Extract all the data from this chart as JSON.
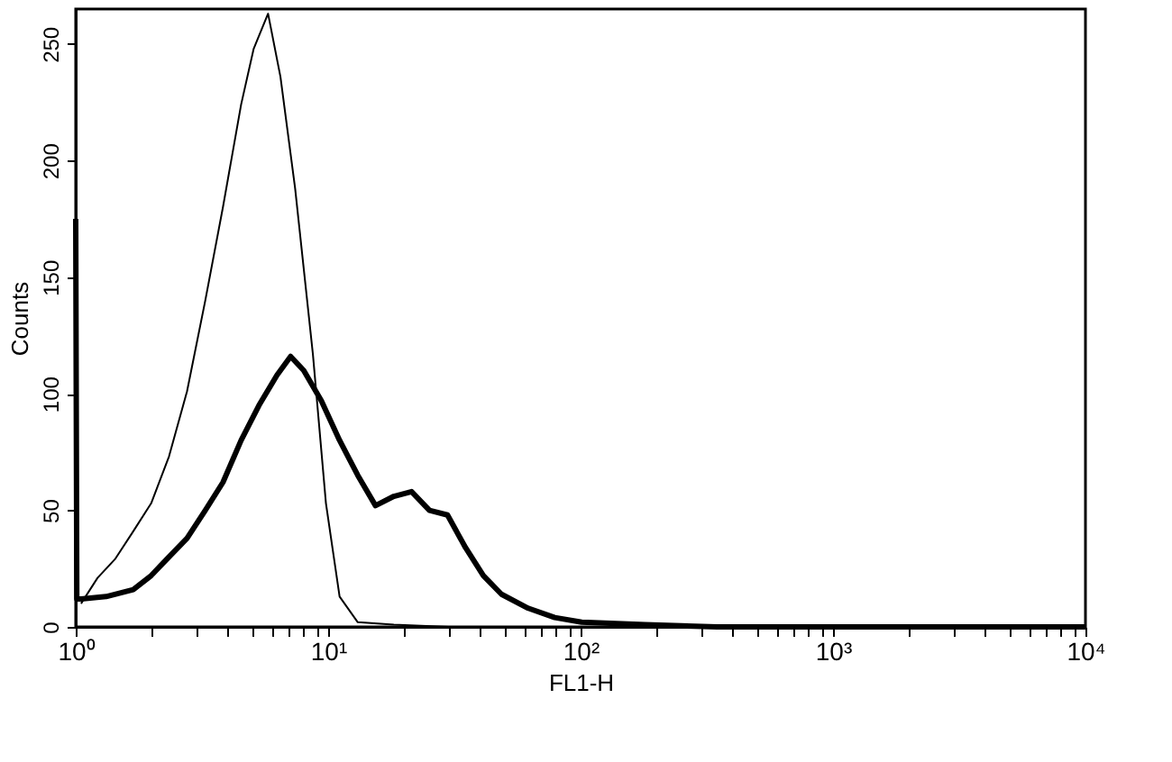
{
  "chart_data": {
    "type": "line",
    "xlabel": "FL1-H",
    "ylabel": "Counts",
    "xlim": [
      1,
      10000
    ],
    "ylim": [
      0,
      265
    ],
    "xticks": [
      {
        "value": 1,
        "label": "10⁰"
      },
      {
        "value": 2,
        "label": null
      },
      {
        "value": 3,
        "label": null
      },
      {
        "value": 4,
        "label": null
      },
      {
        "value": 5,
        "label": null
      },
      {
        "value": 6,
        "label": null
      },
      {
        "value": 7,
        "label": null
      },
      {
        "value": 8,
        "label": null
      },
      {
        "value": 9,
        "label": null
      },
      {
        "value": 10,
        "label": "10¹"
      },
      {
        "value": 20,
        "label": null
      },
      {
        "value": 30,
        "label": null
      },
      {
        "value": 40,
        "label": null
      },
      {
        "value": 50,
        "label": null
      },
      {
        "value": 60,
        "label": null
      },
      {
        "value": 70,
        "label": null
      },
      {
        "value": 80,
        "label": null
      },
      {
        "value": 90,
        "label": null
      },
      {
        "value": 100,
        "label": "10²"
      },
      {
        "value": 200,
        "label": null
      },
      {
        "value": 300,
        "label": null
      },
      {
        "value": 400,
        "label": null
      },
      {
        "value": 500,
        "label": null
      },
      {
        "value": 600,
        "label": null
      },
      {
        "value": 700,
        "label": null
      },
      {
        "value": 800,
        "label": null
      },
      {
        "value": 900,
        "label": null
      },
      {
        "value": 1000,
        "label": "10³"
      },
      {
        "value": 2000,
        "label": null
      },
      {
        "value": 3000,
        "label": null
      },
      {
        "value": 4000,
        "label": null
      },
      {
        "value": 5000,
        "label": null
      },
      {
        "value": 6000,
        "label": null
      },
      {
        "value": 7000,
        "label": null
      },
      {
        "value": 8000,
        "label": null
      },
      {
        "value": 9000,
        "label": null
      },
      {
        "value": 10000,
        "label": "10⁴"
      }
    ],
    "yticks": [
      0,
      50,
      100,
      150,
      200,
      250
    ],
    "log": "x",
    "grid": false,
    "marker": "none",
    "line_style": "solid",
    "series": [
      {
        "color": "#000000",
        "x": [
          1.05,
          1.22,
          1.43,
          1.69,
          1.99,
          2.34,
          2.76,
          3.26,
          3.83,
          4.52,
          5.07,
          5.78,
          6.47,
          7.4,
          8.7,
          9.8,
          11.1,
          13.1,
          18.2,
          30,
          60,
          100,
          300,
          1000,
          10000
        ],
        "values": [
          10,
          21,
          29,
          41,
          53,
          73,
          101,
          140,
          180,
          224,
          248,
          263,
          236,
          188,
          117,
          53,
          13,
          2,
          1,
          0,
          0,
          0,
          0,
          0,
          0
        ]
      },
      {
        "color": "#000000",
        "x": [
          1,
          1.01,
          1.05,
          1.32,
          1.69,
          1.99,
          2.34,
          2.76,
          3.26,
          3.83,
          4.52,
          5.32,
          6.27,
          7.1,
          8.0,
          9.4,
          11.1,
          13.1,
          15.4,
          18.2,
          21.4,
          25.2,
          29.7,
          35.0,
          41.2,
          48.6,
          62,
          79,
          101,
          180,
          347,
          1000,
          10000
        ],
        "values": [
          175,
          12,
          12,
          13,
          16,
          22,
          30,
          38,
          50,
          62,
          80,
          95,
          108,
          116,
          110,
          97,
          80,
          65,
          52,
          56,
          58,
          50,
          48,
          34,
          22,
          14,
          8,
          4,
          2,
          1,
          0,
          0,
          0
        ]
      }
    ]
  }
}
